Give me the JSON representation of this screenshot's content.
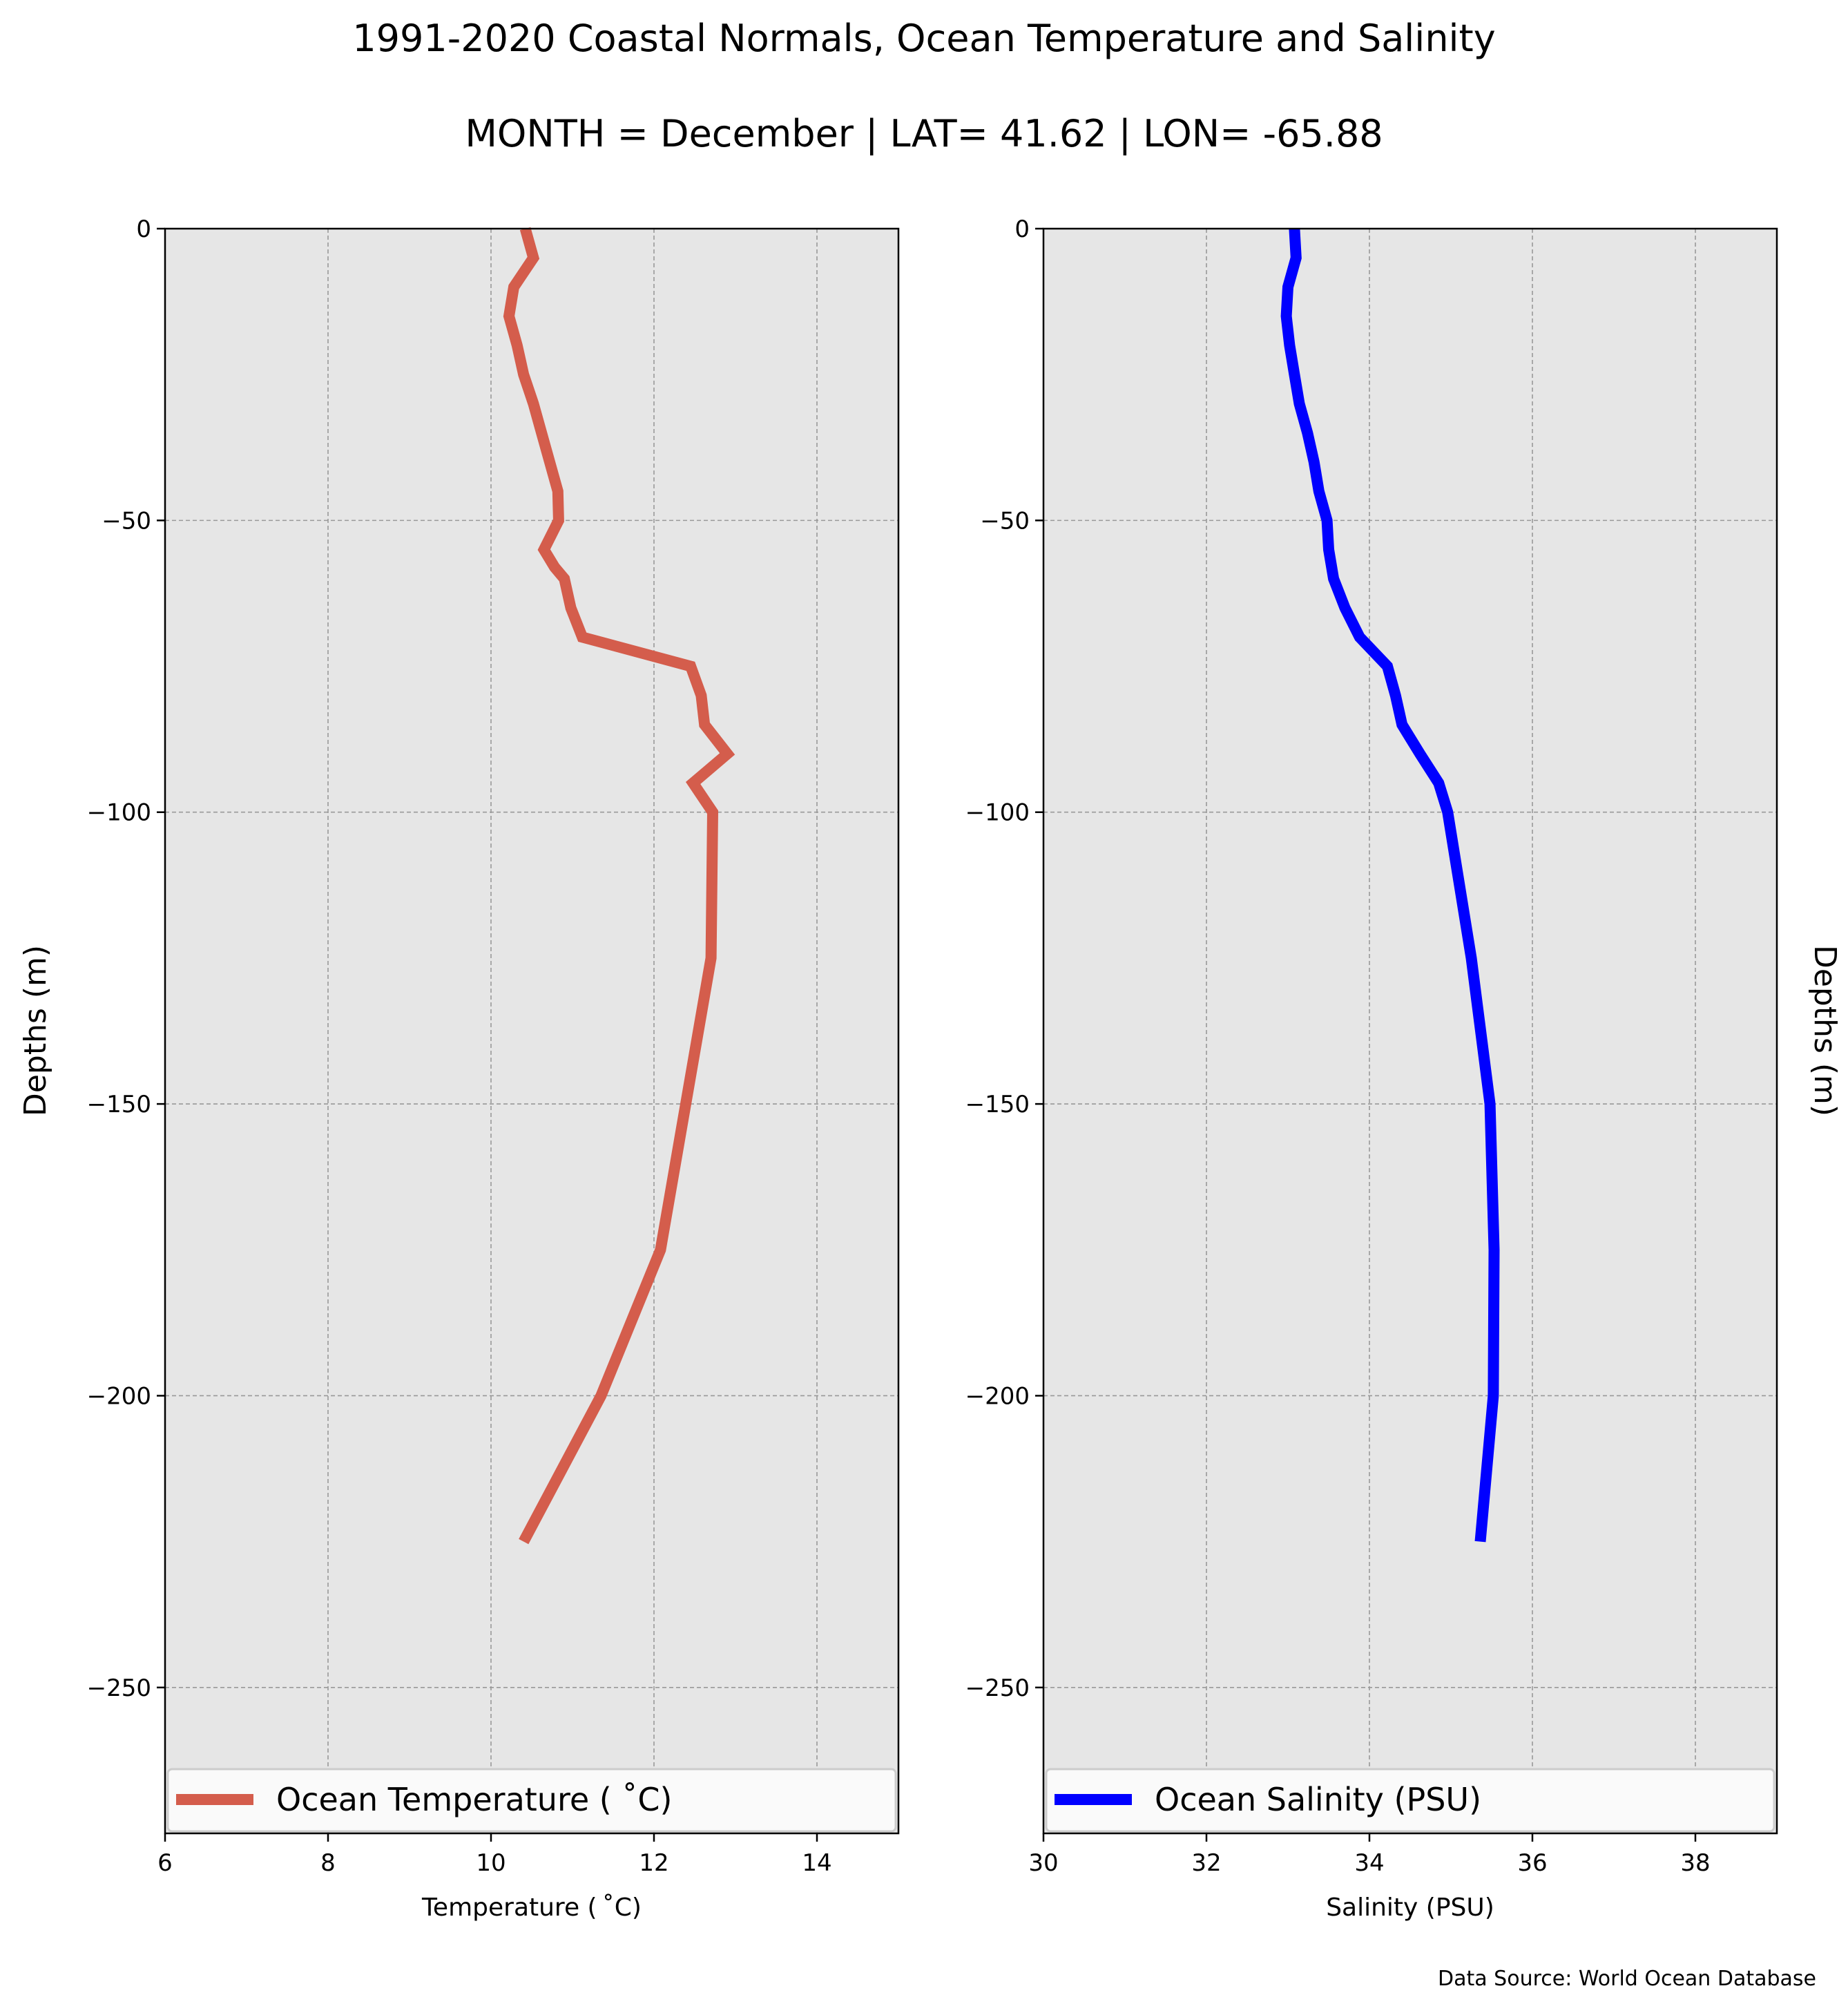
{
  "figure": {
    "title": "1991-2020 Coastal Normals, Ocean Temperature and Salinity",
    "subtitle": "MONTH = December | LAT= 41.62 | LON= -65.88",
    "source": "Data Source: World Ocean Database",
    "background": "#e6e6e6",
    "grid_color": "#999999"
  },
  "chart_data": [
    {
      "type": "line",
      "xlabel": "Temperature ($^\\circ$C)",
      "xlabel_display": "Temperature ( ˚C)",
      "ylabel": "Depths (m)",
      "ylabel_side": "left",
      "xlim": [
        6,
        15
      ],
      "ylim": [
        -275,
        0
      ],
      "xticks": [
        6,
        8,
        10,
        12,
        14
      ],
      "yticks": [
        0,
        -50,
        -100,
        -150,
        -200,
        -250
      ],
      "grid": true,
      "legend_placement": "lower center",
      "series": [
        {
          "name": "Ocean Temperature ( ˚C)",
          "color": "#d45d4c",
          "x": [
            10.42,
            10.52,
            10.28,
            10.22,
            10.32,
            10.4,
            10.52,
            10.62,
            10.72,
            10.82,
            10.83,
            10.65,
            10.78,
            10.9,
            10.98,
            11.12,
            12.45,
            12.58,
            12.62,
            12.9,
            12.48,
            12.72,
            12.7,
            12.08,
            11.35,
            10.4
          ],
          "y": [
            0,
            -5,
            -10,
            -15,
            -20,
            -25,
            -30,
            -35,
            -40,
            -45,
            -50,
            -55,
            -58,
            -60,
            -65,
            -70,
            -75,
            -80,
            -85,
            -90,
            -95,
            -100,
            -125,
            -175,
            -200,
            -225
          ]
        }
      ]
    },
    {
      "type": "line",
      "xlabel": "Salinity (PSU)",
      "ylabel": "Depths (m)",
      "ylabel_side": "right",
      "xlim": [
        30,
        39
      ],
      "ylim": [
        -275,
        0
      ],
      "xticks": [
        30,
        32,
        34,
        36,
        38
      ],
      "yticks": [
        0,
        -50,
        -100,
        -150,
        -200,
        -250
      ],
      "grid": true,
      "legend_placement": "lower center",
      "series": [
        {
          "name": "Ocean Salinity (PSU)",
          "color": "#0000ff",
          "x": [
            33.08,
            33.1,
            33.0,
            32.98,
            33.02,
            33.08,
            33.14,
            33.24,
            33.32,
            33.38,
            33.48,
            33.5,
            33.56,
            33.7,
            33.88,
            34.22,
            34.32,
            34.4,
            34.62,
            34.85,
            34.96,
            35.25,
            35.48,
            35.53,
            35.52,
            35.36
          ],
          "y": [
            0,
            -5,
            -10,
            -15,
            -20,
            -25,
            -30,
            -35,
            -40,
            -45,
            -50,
            -55,
            -60,
            -65,
            -70,
            -75,
            -80,
            -85,
            -90,
            -95,
            -100,
            -125,
            -150,
            -175,
            -200,
            -225
          ]
        }
      ]
    }
  ]
}
